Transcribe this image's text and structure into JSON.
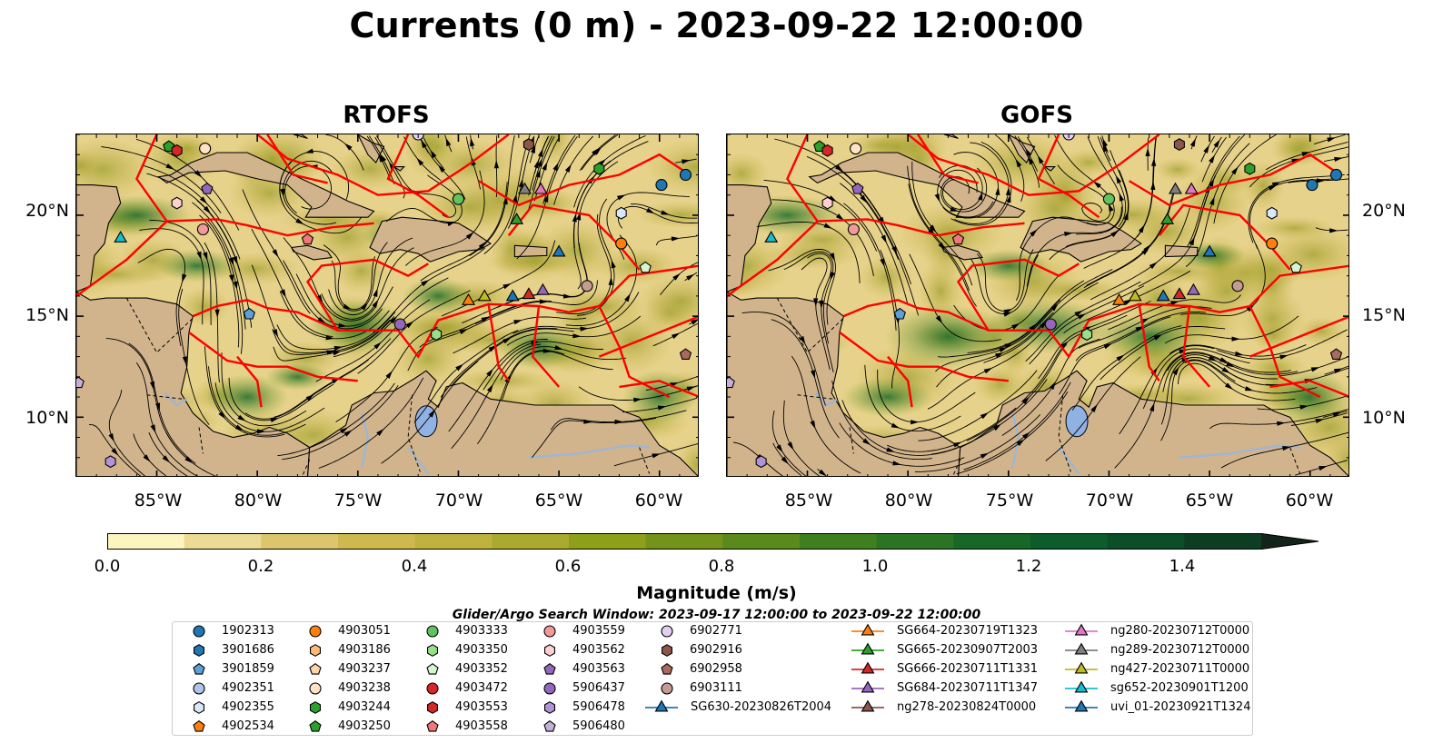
{
  "title": "Currents (0 m) - 2023-09-22 12:00:00",
  "panels": [
    {
      "title": "RTOFS"
    },
    {
      "title": "GOFS"
    }
  ],
  "axes": {
    "lat_ticks": [
      "20°N",
      "15°N",
      "10°N"
    ],
    "lon_ticks": [
      "85°W",
      "80°W",
      "75°W",
      "70°W",
      "65°W",
      "60°W"
    ]
  },
  "colorbar": {
    "label": "Magnitude (m/s)",
    "ticks": [
      "0.0",
      "0.2",
      "0.4",
      "0.6",
      "0.8",
      "1.0",
      "1.2",
      "1.4"
    ],
    "colors": [
      "#fcf5c0",
      "#ecdb94",
      "#dcc56c",
      "#cfb94e",
      "#c0b23f",
      "#a9aa2e",
      "#8e9f1a",
      "#74931a",
      "#5a8a1c",
      "#3f7f20",
      "#2b7423",
      "#176827",
      "#0c5d2b",
      "#0b4e28",
      "#0d3d22",
      "#10301c",
      "#13251a"
    ]
  },
  "legend": {
    "title": "Glider/Argo Search Window: 2023-09-17 12:00:00 to 2023-09-22 12:00:00",
    "argo": [
      {
        "id": "1902313",
        "marker": "circle",
        "color": "#1f77b4"
      },
      {
        "id": "3901686",
        "marker": "hexagon",
        "color": "#1f77b4"
      },
      {
        "id": "3901859",
        "marker": "pentagon",
        "color": "#5d9fd8"
      },
      {
        "id": "4902351",
        "marker": "circle",
        "color": "#aec7e8"
      },
      {
        "id": "4902355",
        "marker": "hexagon",
        "color": "#d7e8f8"
      },
      {
        "id": "4902534",
        "marker": "pentagon",
        "color": "#ff7f0e"
      },
      {
        "id": "4903051",
        "marker": "circle",
        "color": "#ff7f0e"
      },
      {
        "id": "4903186",
        "marker": "hexagon",
        "color": "#ffbb78"
      },
      {
        "id": "4903237",
        "marker": "pentagon",
        "color": "#ffd4a8"
      },
      {
        "id": "4903238",
        "marker": "circle",
        "color": "#ffe3c4"
      },
      {
        "id": "4903244",
        "marker": "hexagon",
        "color": "#2ca02c"
      },
      {
        "id": "4903250",
        "marker": "pentagon",
        "color": "#2ca02c"
      },
      {
        "id": "4903333",
        "marker": "circle",
        "color": "#5fc35f"
      },
      {
        "id": "4903350",
        "marker": "hexagon",
        "color": "#98df8a"
      },
      {
        "id": "4903352",
        "marker": "pentagon",
        "color": "#d6f5cf"
      },
      {
        "id": "4903472",
        "marker": "circle",
        "color": "#d62728"
      },
      {
        "id": "4903553",
        "marker": "hexagon",
        "color": "#d62728"
      },
      {
        "id": "4903558",
        "marker": "pentagon",
        "color": "#f0787a"
      },
      {
        "id": "4903559",
        "marker": "circle",
        "color": "#f29a9a"
      },
      {
        "id": "4903562",
        "marker": "hexagon",
        "color": "#ffd0d0"
      },
      {
        "id": "4903563",
        "marker": "pentagon",
        "color": "#9467bd"
      },
      {
        "id": "5906437",
        "marker": "circle",
        "color": "#9467bd"
      },
      {
        "id": "5906478",
        "marker": "hexagon",
        "color": "#b293d6"
      },
      {
        "id": "5906480",
        "marker": "pentagon",
        "color": "#c5b0d5"
      },
      {
        "id": "6902771",
        "marker": "circle",
        "color": "#e3cff0"
      },
      {
        "id": "6902916",
        "marker": "hexagon",
        "color": "#8c564b"
      },
      {
        "id": "6902958",
        "marker": "pentagon",
        "color": "#a86b5e"
      },
      {
        "id": "6903111",
        "marker": "circle",
        "color": "#c49c94"
      }
    ],
    "gliders": [
      {
        "id": "SG630-20230826T2004",
        "color": "#1f77b4"
      },
      {
        "id": "SG664-20230719T1323",
        "color": "#ff7f0e"
      },
      {
        "id": "SG665-20230907T2003",
        "color": "#2ca02c"
      },
      {
        "id": "SG666-20230711T1331",
        "color": "#d62728"
      },
      {
        "id": "SG684-20230711T1347",
        "color": "#9467bd"
      },
      {
        "id": "ng278-20230824T0000",
        "color": "#8c564b"
      },
      {
        "id": "ng280-20230712T0000",
        "color": "#e377c2"
      },
      {
        "id": "ng289-20230712T0000",
        "color": "#7f7f7f"
      },
      {
        "id": "ng427-20230711T0000",
        "color": "#bcbd22"
      },
      {
        "id": "sg652-20230901T1200",
        "color": "#17becf"
      },
      {
        "id": "uvi_01-20230921T1324",
        "color": "#1f77b4"
      }
    ]
  },
  "map_extent": {
    "lon": [
      -89,
      -58
    ],
    "lat": [
      7,
      24
    ]
  },
  "colors": {
    "land": "#d2b48c",
    "lake": "#8fb1e3",
    "river": "#9fb6cf",
    "eez": "#ff0000"
  },
  "glider_positions_rtofs": [
    {
      "lon": -86.8,
      "lat": 18.9,
      "color": "#17becf"
    },
    {
      "lon": -69.5,
      "lat": 15.8,
      "color": "#ff7f0e"
    },
    {
      "lon": -68.7,
      "lat": 16.0,
      "color": "#bcbd22"
    },
    {
      "lon": -67.3,
      "lat": 16.0,
      "color": "#1f77b4"
    },
    {
      "lon": -66.5,
      "lat": 16.1,
      "color": "#d62728"
    },
    {
      "lon": -65.8,
      "lat": 16.3,
      "color": "#9467bd"
    },
    {
      "lon": -66.7,
      "lat": 21.3,
      "color": "#7f7f7f"
    },
    {
      "lon": -65.9,
      "lat": 21.3,
      "color": "#e377c2"
    },
    {
      "lon": -67.1,
      "lat": 19.8,
      "color": "#2ca02c"
    },
    {
      "lon": -65.0,
      "lat": 18.2,
      "color": "#1f77b4"
    }
  ],
  "argo_positions": [
    {
      "lon": -84.4,
      "lat": 23.4,
      "id": "4903250"
    },
    {
      "lon": -82.6,
      "lat": 23.3,
      "id": "4903238"
    },
    {
      "lon": -84.0,
      "lat": 23.2,
      "id": "4903553"
    },
    {
      "lon": -84.0,
      "lat": 20.6,
      "id": "4903562"
    },
    {
      "lon": -82.7,
      "lat": 19.3,
      "id": "4903559"
    },
    {
      "lon": -82.5,
      "lat": 21.3,
      "id": "4903563"
    },
    {
      "lon": -77.5,
      "lat": 18.8,
      "id": "4903558"
    },
    {
      "lon": -70.0,
      "lat": 20.8,
      "id": "4903333"
    },
    {
      "lon": -66.5,
      "lat": 23.5,
      "id": "6902916"
    },
    {
      "lon": -63.0,
      "lat": 22.3,
      "id": "4903244"
    },
    {
      "lon": -59.9,
      "lat": 21.5,
      "id": "1902313"
    },
    {
      "lon": -58.7,
      "lat": 22.0,
      "id": "1902313"
    },
    {
      "lon": -61.9,
      "lat": 20.1,
      "id": "4902355"
    },
    {
      "lon": -61.9,
      "lat": 18.6,
      "id": "4903051"
    },
    {
      "lon": -60.7,
      "lat": 17.4,
      "id": "4903352"
    },
    {
      "lon": -63.6,
      "lat": 16.5,
      "id": "6903111"
    },
    {
      "lon": -72.9,
      "lat": 14.6,
      "id": "5906437"
    },
    {
      "lon": -71.1,
      "lat": 14.1,
      "id": "4903350"
    },
    {
      "lon": -80.4,
      "lat": 15.1,
      "id": "3901859"
    },
    {
      "lon": -58.7,
      "lat": 13.1,
      "id": "6902958"
    },
    {
      "lon": -88.9,
      "lat": 11.7,
      "id": "5906480"
    },
    {
      "lon": -87.3,
      "lat": 7.8,
      "id": "5906478"
    },
    {
      "lon": -72.0,
      "lat": 24.0,
      "id": "6902771"
    }
  ]
}
